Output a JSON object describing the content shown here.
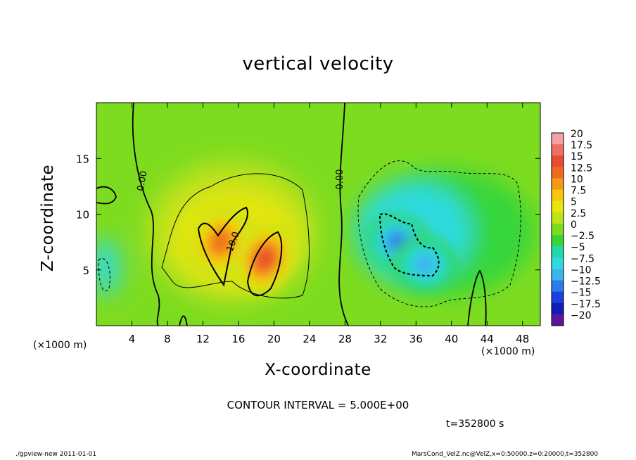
{
  "chart_data": {
    "type": "heatmap",
    "title": "vertical velocity",
    "xlabel": "X-coordinate",
    "ylabel": "Z-coordinate",
    "x_unit": "(×1000 m)",
    "xlim": [
      0,
      50
    ],
    "ylim": [
      0,
      20
    ],
    "x_ticks": [
      "4",
      "8",
      "12",
      "16",
      "20",
      "24",
      "28",
      "32",
      "36",
      "40",
      "44",
      "48"
    ],
    "y_ticks": [
      "5",
      "10",
      "15"
    ],
    "contour_interval": "CONTOUR INTERVAL = 5.000E+00",
    "time_label": "t=352800  s",
    "contour_labels": [
      "0.00",
      "0.00",
      "10.0"
    ],
    "colorbar": {
      "labels": [
        "20",
        "17.5",
        "15",
        "12.5",
        "10",
        "7.5",
        "5",
        "2.5",
        "0",
        "−2.5",
        "−5",
        "−7.5",
        "−10",
        "−12.5",
        "−15",
        "−17.5",
        "−20"
      ],
      "colors": [
        "#f4a3a3",
        "#ee6f66",
        "#e84b30",
        "#ef6a1e",
        "#f59a12",
        "#f8c80e",
        "#e6e60c",
        "#bde21a",
        "#7edc20",
        "#34d63a",
        "#22d9a8",
        "#2fdadf",
        "#3ab5ec",
        "#2a7ce8",
        "#1c3fe0",
        "#141cb8",
        "#5a169e"
      ]
    },
    "features": [
      {
        "kind": "updraft",
        "center": [
          14,
          7.5
        ],
        "peak": 12
      },
      {
        "kind": "updraft",
        "center": [
          19,
          6
        ],
        "peak": 15
      },
      {
        "kind": "downdraft",
        "center": [
          34,
          7.5
        ],
        "peak": -12
      },
      {
        "kind": "downdraft",
        "center": [
          37,
          5.5
        ],
        "peak": -11
      }
    ]
  },
  "footer": {
    "left": "./gpview-new    2011-01-01",
    "right": "MarsCond_VelZ.nc@VelZ,x=0:50000,z=0:20000,t=352800"
  }
}
